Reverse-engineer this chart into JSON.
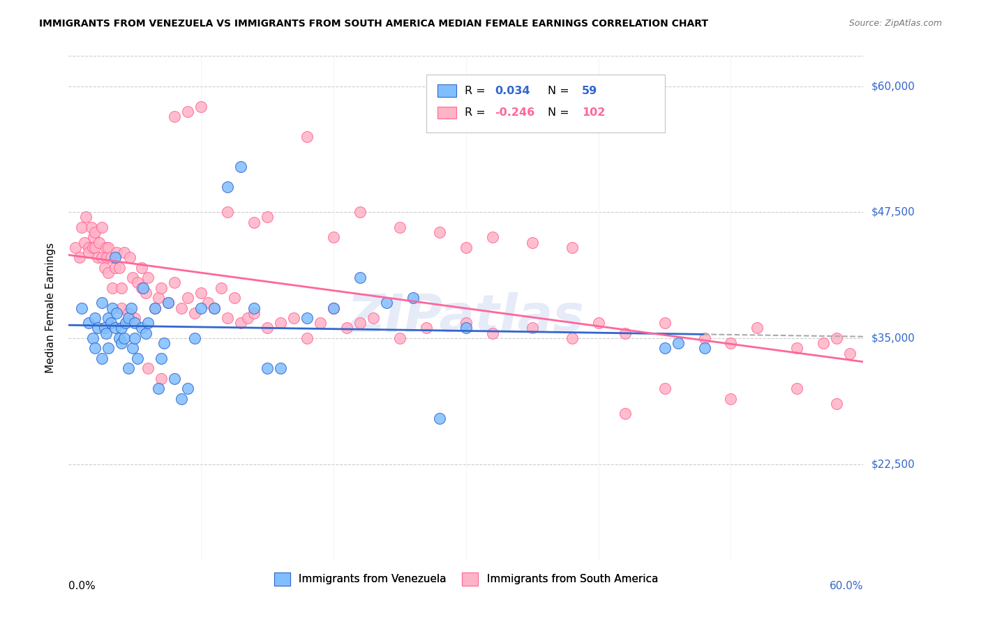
{
  "title": "IMMIGRANTS FROM VENEZUELA VS IMMIGRANTS FROM SOUTH AMERICA MEDIAN FEMALE EARNINGS CORRELATION CHART",
  "source": "Source: ZipAtlas.com",
  "ylabel": "Median Female Earnings",
  "xmin": 0.0,
  "xmax": 0.6,
  "ymin": 13000,
  "ymax": 63000,
  "color_venezuela": "#7fbfff",
  "color_south_america": "#ffb3c6",
  "color_blue_dark": "#3366cc",
  "color_pink_dark": "#ff6699",
  "watermark": "ZIPatlas",
  "venezuela_x": [
    0.01,
    0.015,
    0.018,
    0.02,
    0.02,
    0.022,
    0.025,
    0.025,
    0.027,
    0.028,
    0.03,
    0.03,
    0.032,
    0.033,
    0.035,
    0.035,
    0.036,
    0.038,
    0.04,
    0.04,
    0.042,
    0.043,
    0.045,
    0.045,
    0.047,
    0.048,
    0.05,
    0.05,
    0.052,
    0.055,
    0.056,
    0.058,
    0.06,
    0.065,
    0.068,
    0.07,
    0.072,
    0.075,
    0.08,
    0.085,
    0.09,
    0.095,
    0.1,
    0.11,
    0.12,
    0.13,
    0.14,
    0.15,
    0.16,
    0.18,
    0.2,
    0.22,
    0.24,
    0.26,
    0.28,
    0.3,
    0.45,
    0.46,
    0.48
  ],
  "venezuela_y": [
    38000,
    36500,
    35000,
    37000,
    34000,
    36000,
    38500,
    33000,
    36000,
    35500,
    37000,
    34000,
    36500,
    38000,
    43000,
    36000,
    37500,
    35000,
    36000,
    34500,
    35000,
    36500,
    37000,
    32000,
    38000,
    34000,
    36500,
    35000,
    33000,
    36000,
    40000,
    35500,
    36500,
    38000,
    30000,
    33000,
    34500,
    38500,
    31000,
    29000,
    30000,
    35000,
    38000,
    38000,
    50000,
    52000,
    38000,
    32000,
    32000,
    37000,
    38000,
    41000,
    38500,
    39000,
    27000,
    36000,
    34000,
    34500,
    34000
  ],
  "south_america_x": [
    0.005,
    0.008,
    0.01,
    0.012,
    0.013,
    0.015,
    0.015,
    0.017,
    0.018,
    0.019,
    0.02,
    0.02,
    0.022,
    0.023,
    0.025,
    0.025,
    0.027,
    0.028,
    0.029,
    0.03,
    0.03,
    0.032,
    0.033,
    0.035,
    0.036,
    0.038,
    0.04,
    0.04,
    0.042,
    0.045,
    0.046,
    0.048,
    0.05,
    0.052,
    0.055,
    0.055,
    0.058,
    0.06,
    0.065,
    0.068,
    0.07,
    0.075,
    0.08,
    0.085,
    0.09,
    0.095,
    0.1,
    0.105,
    0.11,
    0.115,
    0.12,
    0.125,
    0.13,
    0.135,
    0.14,
    0.15,
    0.16,
    0.17,
    0.18,
    0.19,
    0.2,
    0.21,
    0.22,
    0.23,
    0.25,
    0.27,
    0.3,
    0.32,
    0.35,
    0.38,
    0.4,
    0.42,
    0.45,
    0.48,
    0.5,
    0.52,
    0.55,
    0.57,
    0.58,
    0.59,
    0.08,
    0.09,
    0.1,
    0.12,
    0.14,
    0.15,
    0.18,
    0.2,
    0.22,
    0.25,
    0.28,
    0.3,
    0.32,
    0.35,
    0.38,
    0.42,
    0.45,
    0.5,
    0.55,
    0.58,
    0.06,
    0.07
  ],
  "south_america_y": [
    44000,
    43000,
    46000,
    44500,
    47000,
    44000,
    43500,
    46000,
    44000,
    45000,
    45500,
    44000,
    43000,
    44500,
    43000,
    46000,
    42000,
    44000,
    43000,
    41500,
    44000,
    43000,
    40000,
    42000,
    43500,
    42000,
    38000,
    40000,
    43500,
    37500,
    43000,
    41000,
    37000,
    40500,
    40000,
    42000,
    39500,
    41000,
    38000,
    39000,
    40000,
    38500,
    40500,
    38000,
    39000,
    37500,
    39500,
    38500,
    38000,
    40000,
    37000,
    39000,
    36500,
    37000,
    37500,
    36000,
    36500,
    37000,
    35000,
    36500,
    38000,
    36000,
    36500,
    37000,
    35000,
    36000,
    36500,
    35500,
    36000,
    35000,
    36500,
    35500,
    36500,
    35000,
    34500,
    36000,
    34000,
    34500,
    35000,
    33500,
    57000,
    57500,
    58000,
    47500,
    46500,
    47000,
    55000,
    45000,
    47500,
    46000,
    45500,
    44000,
    45000,
    44500,
    44000,
    27500,
    30000,
    29000,
    30000,
    28500,
    32000,
    31000
  ]
}
